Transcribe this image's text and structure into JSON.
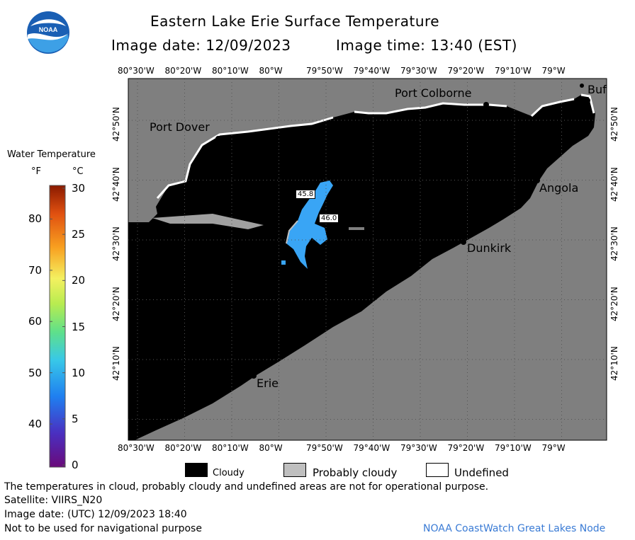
{
  "header": {
    "title": "Eastern Lake Erie Surface Temperature",
    "image_date": "Image date: 12/09/2023",
    "image_time": "Image time: 13:40 (EST)"
  },
  "logo": {
    "text": "NOAA"
  },
  "axes": {
    "top_longitudes": [
      "80°30'W",
      "80°20'W",
      "80°10'W",
      "80°W",
      "79°50'W",
      "79°40'W",
      "79°30'W",
      "79°20'W",
      "79°10'W",
      "79°W"
    ],
    "bottom_longitudes": [
      "80°30'W",
      "80°20'W",
      "80°10'W",
      "80°W",
      "79°50'W",
      "79°40'W",
      "79°30'W",
      "79°20'W",
      "79°10'W",
      "79°W"
    ],
    "left_latitudes": [
      "42°50'N",
      "42°40'N",
      "42°30'N",
      "42°20'N",
      "42°10'N"
    ],
    "right_latitudes": [
      "42°50'N",
      "42°40'N",
      "42°30'N",
      "42°20'N",
      "42°10'N"
    ]
  },
  "places": {
    "port_colborne": "Port Colborne",
    "port_dover": "Port Dover",
    "angola": "Angola",
    "dunkirk": "Dunkirk",
    "erie": "Erie",
    "buffalo": "Buf"
  },
  "temp_labels": {
    "t1": "45.8",
    "t2": "46.0"
  },
  "colorbar": {
    "title": "Water Temperature",
    "unit_f": "°F",
    "unit_c": "°C",
    "f_ticks": [
      "80",
      "70",
      "60",
      "50",
      "40"
    ],
    "c_ticks": [
      "30",
      "25",
      "20",
      "15",
      "10",
      "5",
      "0"
    ]
  },
  "legend": {
    "cloudy": "Cloudy",
    "probably_cloudy": "Probably cloudy",
    "undefined": "Undefined"
  },
  "footer": {
    "disclaimer": "The temperatures in cloud, probably cloudy and undefined areas are not for operational purpose.",
    "satellite": "Satellite: VIIRS_N20",
    "utc_date": "Image date: (UTC) 12/09/2023  18:40",
    "nav_warning": "Not to be used for navigational purpose",
    "credit": "NOAA CoastWatch Great Lakes Node"
  },
  "colors": {
    "land": "#7f7f7f",
    "cloud": "#000000",
    "probably_cloudy": "#bfbfbf",
    "water_warm": "#39a5f5",
    "credit": "#3a7bd5"
  }
}
